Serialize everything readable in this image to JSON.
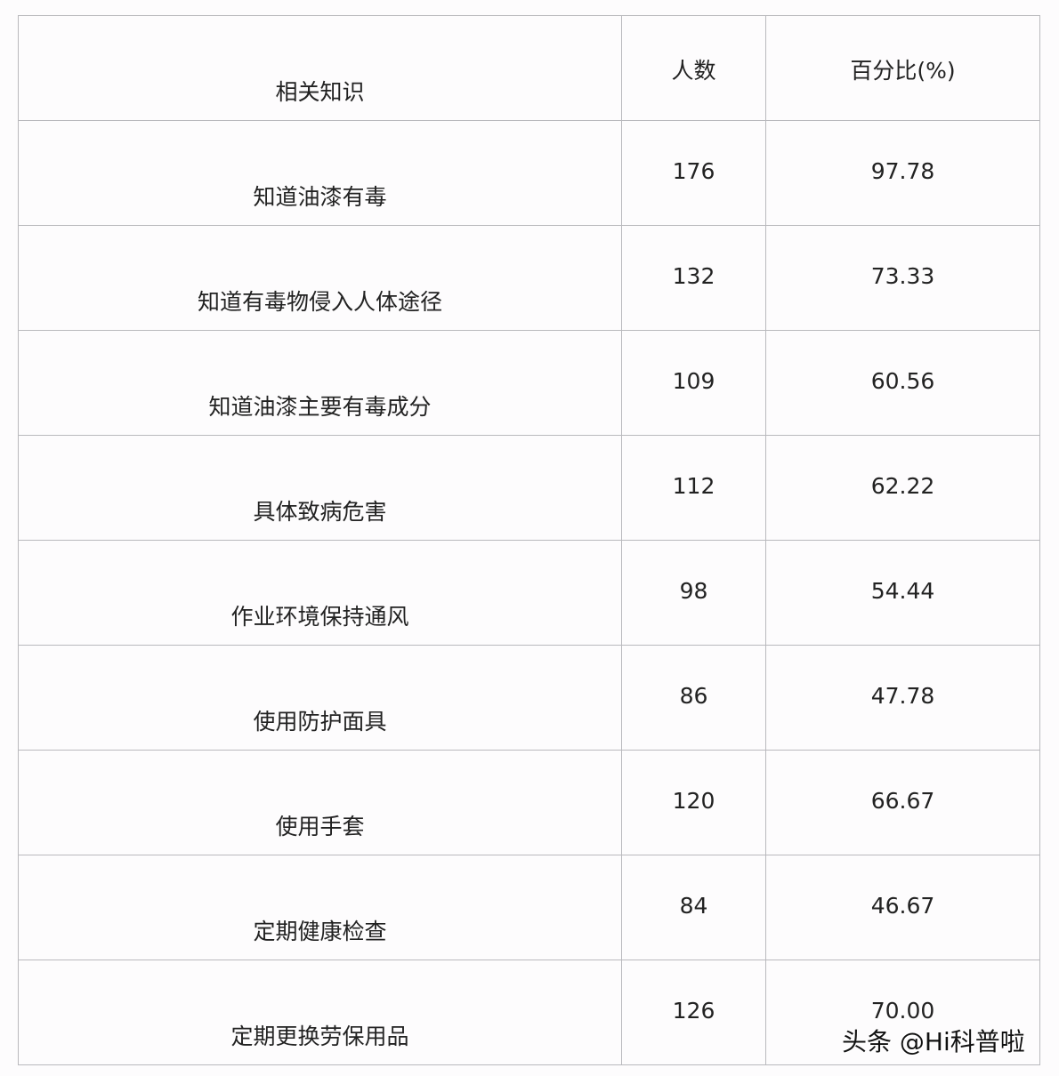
{
  "table": {
    "headers": [
      "相关知识",
      "人数",
      "百分比(%)"
    ],
    "rows": [
      [
        "知道油漆有毒",
        "176",
        "97.78"
      ],
      [
        "知道有毒物侵入人体途径",
        "132",
        "73.33"
      ],
      [
        "知道油漆主要有毒成分",
        "109",
        "60.56"
      ],
      [
        "具体致病危害",
        "112",
        "62.22"
      ],
      [
        "作业环境保持通风",
        "98",
        "54.44"
      ],
      [
        "使用防护面具",
        "86",
        "47.78"
      ],
      [
        "使用手套",
        "120",
        "66.67"
      ],
      [
        "定期健康检查",
        "84",
        "46.67"
      ],
      [
        "定期更换劳保用品",
        "126",
        "70.00"
      ]
    ]
  },
  "watermark": "头条 @Hi科普啦"
}
